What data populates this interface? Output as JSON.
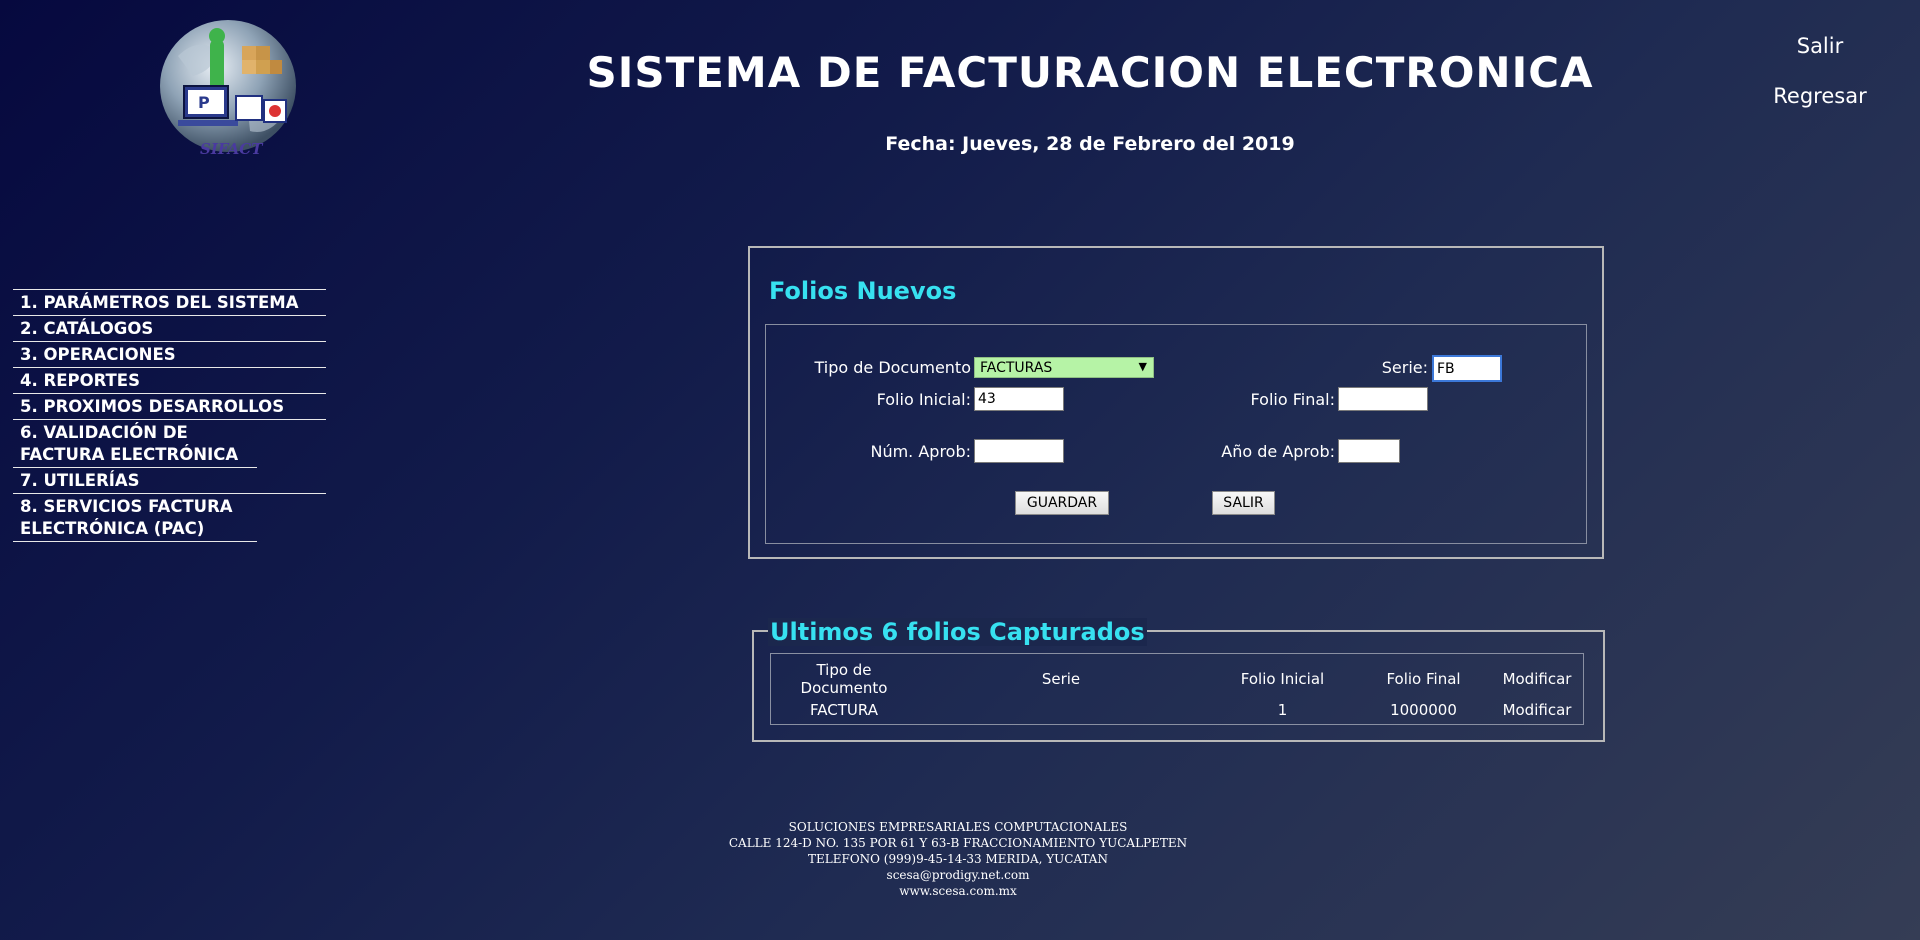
{
  "header": {
    "title": "SISTEMA DE FACTURACION ELECTRONICA",
    "date": "Fecha: Jueves, 28 de Febrero del 2019",
    "logo_text": "SIFACT"
  },
  "top_links": {
    "salir": "Salir",
    "regresar": "Regresar"
  },
  "sidebar": {
    "items": [
      "1. PARÁMETROS DEL SISTEMA",
      "2. CATÁLOGOS",
      "3. OPERACIONES",
      "4. REPORTES",
      "5. PROXIMOS DESARROLLOS",
      "6. VALIDACIÓN DE FACTURA ELECTRÓNICA",
      "7. UTILERÍAS",
      "8. SERVICIOS FACTURA ELECTRÓNICA (PAC)"
    ]
  },
  "form": {
    "heading": "Folios Nuevos",
    "tipo_documento_label": "Tipo de Documento",
    "tipo_documento_value": "FACTURAS",
    "serie_label": "Serie:",
    "serie_value": "FB",
    "folio_inicial_label": "Folio Inicial:",
    "folio_inicial_value": "43",
    "folio_final_label": "Folio Final:",
    "folio_final_value": "",
    "num_aprob_label": "Núm. Aprob:",
    "num_aprob_value": "",
    "anio_aprob_label": "Año de Aprob:",
    "anio_aprob_value": "",
    "guardar_label": "GUARDAR",
    "salir_label": "SALIR"
  },
  "last_folios": {
    "legend": "Ultimos 6 folios Capturados",
    "headers": {
      "tipo_documento": "Tipo de Documento",
      "serie": "Serie",
      "folio_inicial": "Folio Inicial",
      "folio_final": "Folio Final",
      "modificar": "Modificar"
    },
    "rows": [
      {
        "tipo_documento": "FACTURA",
        "serie": "",
        "folio_inicial": "1",
        "folio_final": "1000000",
        "modificar": "Modificar"
      }
    ]
  },
  "footer": {
    "lines": [
      "SOLUCIONES EMPRESARIALES COMPUTACIONALES",
      "CALLE 124-D NO. 135 POR 61 Y 63-B FRACCIONAMIENTO YUCALPETEN",
      "TELEFONO (999)9-45-14-33 MERIDA, YUCATAN",
      "scesa@prodigy.net.com",
      "www.scesa.com.mx"
    ]
  }
}
